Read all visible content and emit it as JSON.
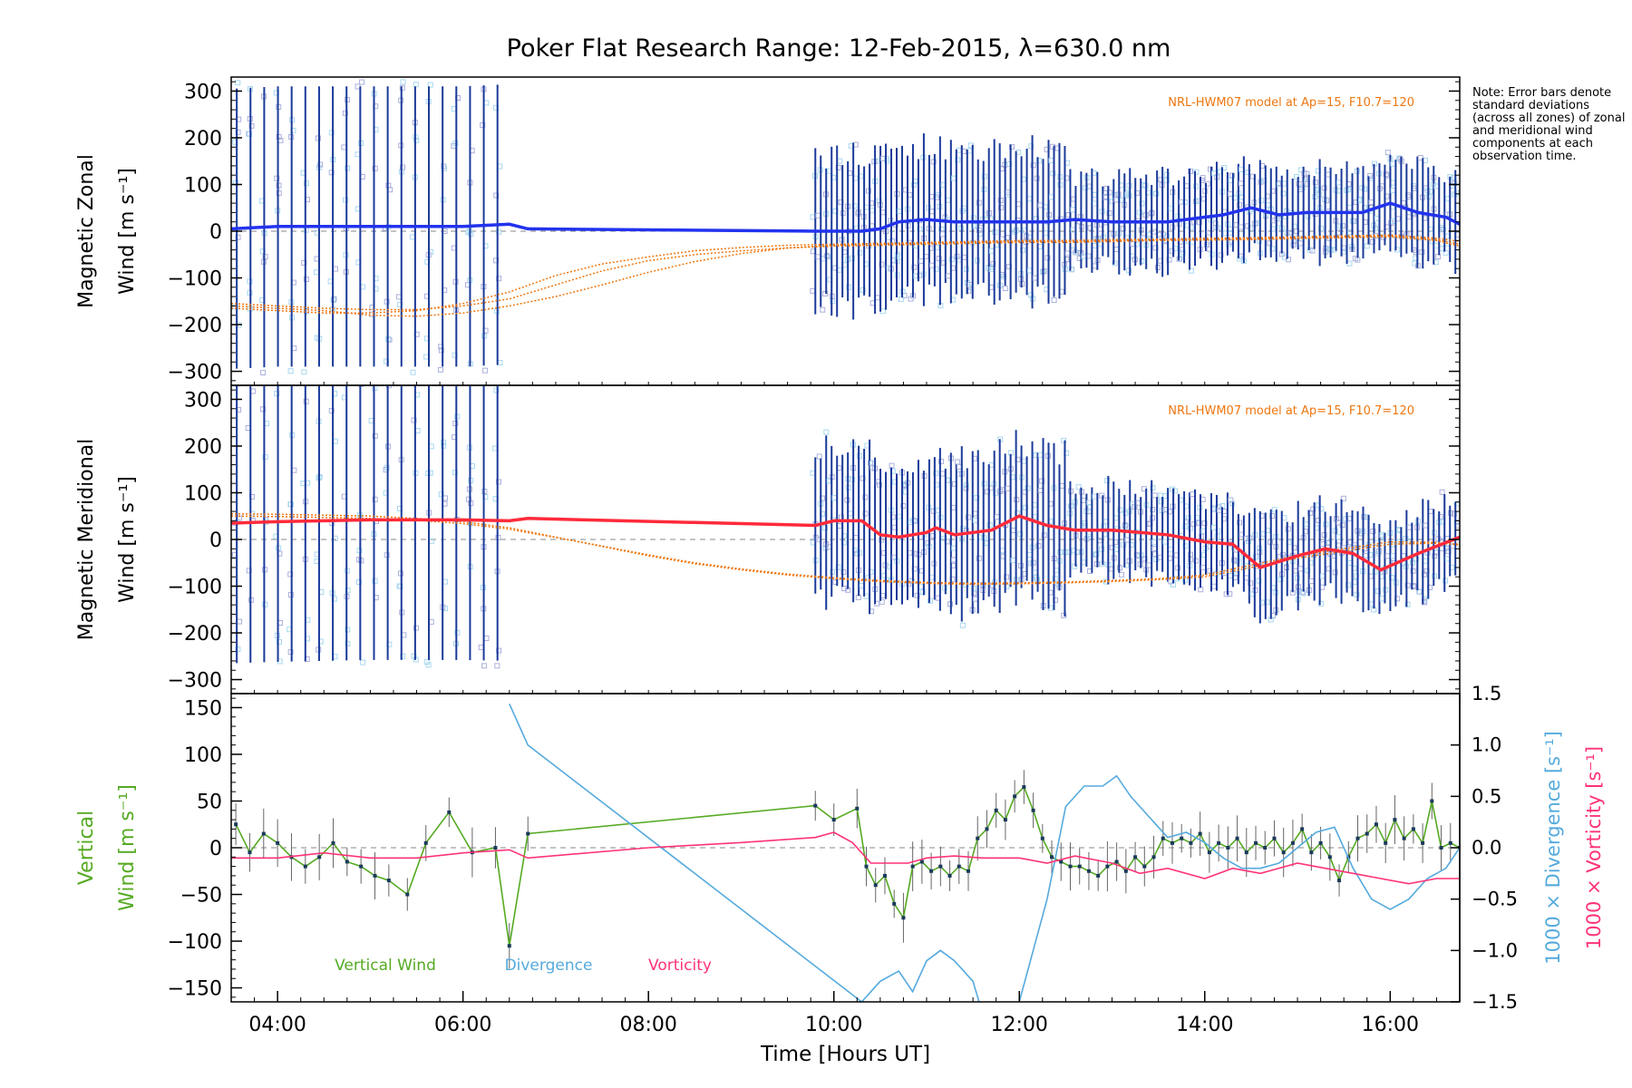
{
  "title": "Poker Flat Research Range: 12-Feb-2015, λ=630.0 nm",
  "note": "Note: Error bars denote standard deviations (across all zones) of zonal and meridional wind components at each observation time.",
  "colors": {
    "zonal": "#2233ee",
    "meridional": "#ff2a3a",
    "model": "#ee7711",
    "vertical": "#55aa22",
    "divergence": "#55aadd",
    "vorticity": "#ff3377",
    "err": "#1a3a9a",
    "scatter": "#9999cc",
    "zero": "#888888",
    "axis": "#000000"
  },
  "chart_data": [
    {
      "type": "line",
      "panel": "zonal",
      "ylabel": [
        "Magnetic Zonal",
        "Wind [m s⁻¹]"
      ],
      "ylim": [
        -330,
        330
      ],
      "yticks": [
        -300,
        -200,
        -100,
        0,
        100,
        200,
        300
      ],
      "xlim": [
        3.5,
        16.75
      ],
      "model_label": "NRL-HWM07 model at Ap=15, F10.7=120",
      "series": [
        {
          "id": "zonal_mean",
          "x": [
            3.5,
            4.0,
            4.5,
            5.0,
            5.5,
            6.0,
            6.5,
            6.7,
            9.8,
            10.3,
            10.5,
            10.7,
            11.0,
            11.3,
            11.6,
            12.0,
            12.3,
            12.6,
            13.0,
            13.3,
            13.6,
            14.0,
            14.2,
            14.5,
            14.8,
            15.1,
            15.4,
            15.7,
            16.0,
            16.3,
            16.6,
            16.75
          ],
          "y": [
            5,
            10,
            10,
            10,
            10,
            10,
            15,
            5,
            0,
            0,
            5,
            20,
            25,
            20,
            20,
            20,
            20,
            25,
            20,
            20,
            20,
            30,
            35,
            50,
            35,
            40,
            40,
            40,
            60,
            40,
            30,
            15
          ]
        },
        {
          "id": "model_1",
          "x": [
            3.5,
            4.0,
            4.5,
            5.0,
            5.5,
            6.0,
            6.5,
            7.0,
            7.5,
            8.0,
            8.5,
            9.0,
            9.5,
            10.0,
            10.5,
            11.0,
            11.5,
            12.0,
            12.5,
            13.0,
            13.5,
            14.0,
            14.5,
            15.0,
            15.5,
            16.0,
            16.5,
            16.75
          ],
          "y": [
            -165,
            -170,
            -175,
            -175,
            -170,
            -155,
            -130,
            -95,
            -70,
            -55,
            -42,
            -35,
            -30,
            -28,
            -26,
            -24,
            -22,
            -20,
            -20,
            -18,
            -17,
            -15,
            -14,
            -12,
            -10,
            -8,
            -15,
            -22
          ]
        },
        {
          "id": "model_2",
          "x": [
            3.5,
            4.0,
            4.5,
            5.0,
            5.5,
            6.0,
            6.5,
            7.0,
            7.5,
            8.0,
            8.5,
            9.0,
            9.5,
            10.0,
            10.5,
            11.0,
            11.5,
            12.0,
            12.5,
            13.0,
            13.5,
            14.0,
            14.5,
            15.0,
            15.5,
            16.0,
            16.5,
            16.75
          ],
          "y": [
            -160,
            -165,
            -170,
            -180,
            -182,
            -175,
            -160,
            -140,
            -115,
            -88,
            -65,
            -48,
            -36,
            -30,
            -28,
            -26,
            -24,
            -22,
            -22,
            -20,
            -18,
            -17,
            -16,
            -14,
            -12,
            -10,
            -18,
            -28
          ]
        },
        {
          "id": "model_3",
          "x": [
            3.5,
            4.0,
            4.5,
            5.0,
            5.5,
            6.0,
            6.5,
            7.0,
            7.5,
            8.0,
            8.5,
            9.0,
            9.5,
            10.0,
            10.5,
            11.0,
            11.5,
            12.0,
            12.5,
            13.0,
            13.5,
            14.0,
            14.5,
            15.0,
            15.5,
            16.0,
            16.5,
            16.75
          ],
          "y": [
            -155,
            -160,
            -165,
            -168,
            -168,
            -160,
            -145,
            -115,
            -85,
            -63,
            -50,
            -42,
            -36,
            -32,
            -30,
            -28,
            -26,
            -24,
            -24,
            -22,
            -20,
            -19,
            -18,
            -16,
            -14,
            -12,
            -20,
            -32
          ]
        }
      ]
    },
    {
      "type": "line",
      "panel": "meridional",
      "ylabel": [
        "Magnetic Meridional",
        "Wind [m s⁻¹]"
      ],
      "ylim": [
        -330,
        330
      ],
      "yticks": [
        -300,
        -200,
        -100,
        0,
        100,
        200,
        300
      ],
      "xlim": [
        3.5,
        16.75
      ],
      "model_label": "NRL-HWM07 model at Ap=15, F10.7=120",
      "series": [
        {
          "id": "meridional_mean",
          "x": [
            3.5,
            4.0,
            4.5,
            5.0,
            5.5,
            6.0,
            6.5,
            6.7,
            9.8,
            10.0,
            10.3,
            10.5,
            10.7,
            11.0,
            11.1,
            11.3,
            11.5,
            11.7,
            12.0,
            12.3,
            12.6,
            13.0,
            13.3,
            13.6,
            14.0,
            14.3,
            14.6,
            15.0,
            15.3,
            15.6,
            15.9,
            16.3,
            16.75
          ],
          "y": [
            35,
            38,
            40,
            42,
            42,
            42,
            40,
            45,
            30,
            40,
            40,
            10,
            5,
            15,
            25,
            10,
            15,
            20,
            50,
            30,
            20,
            20,
            15,
            10,
            -5,
            -10,
            -60,
            -35,
            -20,
            -30,
            -65,
            -30,
            5
          ]
        },
        {
          "id": "model_1",
          "x": [
            3.5,
            4.0,
            4.5,
            5.0,
            5.5,
            6.0,
            6.5,
            7.0,
            7.5,
            8.0,
            8.5,
            9.0,
            9.5,
            10.0,
            10.5,
            11.0,
            11.5,
            12.0,
            12.5,
            13.0,
            13.5,
            14.0,
            14.5,
            15.0,
            15.5,
            16.0,
            16.5,
            16.75
          ],
          "y": [
            55,
            54,
            52,
            50,
            45,
            38,
            25,
            5,
            -15,
            -35,
            -52,
            -65,
            -76,
            -84,
            -90,
            -94,
            -96,
            -95,
            -93,
            -90,
            -86,
            -80,
            -60,
            -40,
            -25,
            -10,
            -8,
            -10
          ]
        },
        {
          "id": "model_2",
          "x": [
            3.5,
            4.0,
            4.5,
            5.0,
            5.5,
            6.0,
            6.5,
            7.0,
            7.5,
            8.0,
            8.5,
            9.0,
            9.5,
            10.0,
            10.5,
            11.0,
            11.5,
            12.0,
            12.5,
            13.0,
            13.5,
            14.0,
            14.5,
            15.0,
            15.5,
            16.0,
            16.5,
            16.75
          ],
          "y": [
            50,
            49,
            47,
            45,
            41,
            34,
            22,
            4,
            -14,
            -33,
            -50,
            -63,
            -74,
            -82,
            -88,
            -92,
            -94,
            -93,
            -91,
            -88,
            -84,
            -76,
            -55,
            -35,
            -20,
            -5,
            -6,
            -12
          ]
        }
      ]
    },
    {
      "type": "line",
      "panel": "vertical",
      "ylabel": [
        "Vertical",
        "Wind [m s⁻¹]"
      ],
      "y2label": [
        "1000 × Divergence [s⁻¹]",
        "1000 × Vorticity [s⁻¹]"
      ],
      "ylim": [
        -165,
        165
      ],
      "yticks": [
        -150,
        -100,
        -50,
        0,
        50,
        100,
        150
      ],
      "y2lim": [
        -1.5,
        1.5
      ],
      "y2ticks": [
        -1.5,
        -1.0,
        -0.5,
        0.0,
        0.5,
        1.0,
        1.5
      ],
      "xlim": [
        3.5,
        16.75
      ],
      "xticks": [
        4,
        6,
        8,
        10,
        12,
        14,
        16
      ],
      "xticklabels": [
        "04:00",
        "06:00",
        "08:00",
        "10:00",
        "12:00",
        "14:00",
        "16:00"
      ],
      "xlabel": "Time [Hours UT]",
      "legend": [
        "Vertical Wind",
        "Divergence",
        "Vorticity"
      ],
      "series": [
        {
          "id": "vertical_wind",
          "name": "Vertical Wind",
          "x": [
            3.55,
            3.7,
            3.85,
            4.0,
            4.15,
            4.3,
            4.45,
            4.6,
            4.75,
            4.9,
            5.05,
            5.2,
            5.4,
            5.6,
            5.85,
            6.1,
            6.35,
            6.5,
            6.7,
            9.8,
            10.0,
            10.25,
            10.35,
            10.45,
            10.55,
            10.65,
            10.75,
            10.85,
            10.95,
            11.05,
            11.15,
            11.25,
            11.35,
            11.45,
            11.55,
            11.65,
            11.75,
            11.85,
            11.95,
            12.05,
            12.15,
            12.25,
            12.35,
            12.45,
            12.55,
            12.65,
            12.75,
            12.85,
            12.95,
            13.05,
            13.15,
            13.25,
            13.35,
            13.45,
            13.55,
            13.65,
            13.75,
            13.85,
            13.95,
            14.05,
            14.15,
            14.25,
            14.35,
            14.45,
            14.55,
            14.65,
            14.75,
            14.85,
            14.95,
            15.05,
            15.15,
            15.25,
            15.35,
            15.45,
            15.55,
            15.65,
            15.75,
            15.85,
            15.95,
            16.05,
            16.15,
            16.25,
            16.35,
            16.45,
            16.55,
            16.65,
            16.75
          ],
          "y": [
            25,
            -5,
            15,
            5,
            -10,
            -20,
            -10,
            5,
            -15,
            -20,
            -30,
            -35,
            -50,
            5,
            38,
            -5,
            0,
            -105,
            15,
            45,
            30,
            42,
            -20,
            -40,
            -30,
            -60,
            -75,
            -20,
            -15,
            -25,
            -20,
            -30,
            -20,
            -25,
            10,
            20,
            40,
            30,
            55,
            65,
            40,
            10,
            -10,
            -15,
            -20,
            -20,
            -25,
            -30,
            -20,
            -15,
            -25,
            -10,
            -20,
            -10,
            10,
            5,
            10,
            5,
            15,
            -5,
            5,
            0,
            10,
            -5,
            5,
            0,
            10,
            -5,
            5,
            20,
            -5,
            5,
            -10,
            -35,
            -10,
            10,
            15,
            25,
            5,
            30,
            10,
            20,
            5,
            50,
            0,
            5,
            0
          ]
        },
        {
          "id": "divergence",
          "name": "Divergence",
          "axis": "y2",
          "x": [
            6.5,
            6.7,
            10.3,
            10.5,
            10.7,
            10.85,
            11.0,
            11.15,
            11.3,
            11.5,
            11.6,
            12.0,
            12.3,
            12.5,
            12.7,
            12.9,
            13.05,
            13.2,
            13.4,
            13.6,
            13.8,
            14.0,
            14.2,
            14.4,
            14.6,
            14.8,
            15.0,
            15.2,
            15.4,
            15.6,
            15.8,
            16.0,
            16.2,
            16.4,
            16.6,
            16.75
          ],
          "y": [
            1.4,
            1.0,
            -1.5,
            -1.3,
            -1.2,
            -1.4,
            -1.1,
            -1.0,
            -1.1,
            -1.3,
            -1.6,
            -1.5,
            -0.5,
            0.4,
            0.6,
            0.6,
            0.7,
            0.5,
            0.3,
            0.1,
            0.15,
            0.05,
            -0.1,
            -0.2,
            -0.2,
            -0.15,
            0.0,
            0.15,
            0.2,
            -0.2,
            -0.5,
            -0.6,
            -0.5,
            -0.3,
            -0.2,
            0.0
          ]
        },
        {
          "id": "vorticity",
          "name": "Vorticity",
          "axis": "y2",
          "x": [
            3.5,
            4.0,
            4.5,
            5.0,
            5.5,
            6.0,
            6.5,
            6.7,
            8.0,
            9.0,
            9.8,
            10.0,
            10.2,
            10.4,
            10.6,
            10.8,
            11.0,
            11.3,
            11.6,
            12.0,
            12.3,
            12.6,
            13.0,
            13.3,
            13.6,
            14.0,
            14.3,
            14.6,
            15.0,
            15.3,
            15.6,
            15.9,
            16.2,
            16.5,
            16.75
          ],
          "y": [
            -0.1,
            -0.1,
            -0.05,
            -0.1,
            -0.1,
            -0.05,
            -0.02,
            -0.1,
            0.0,
            0.05,
            0.1,
            0.15,
            0.05,
            -0.15,
            -0.15,
            -0.15,
            -0.1,
            -0.08,
            -0.1,
            -0.1,
            -0.15,
            -0.08,
            -0.15,
            -0.25,
            -0.2,
            -0.3,
            -0.2,
            -0.25,
            -0.15,
            -0.2,
            -0.25,
            -0.3,
            -0.35,
            -0.3,
            -0.3
          ]
        }
      ]
    }
  ]
}
